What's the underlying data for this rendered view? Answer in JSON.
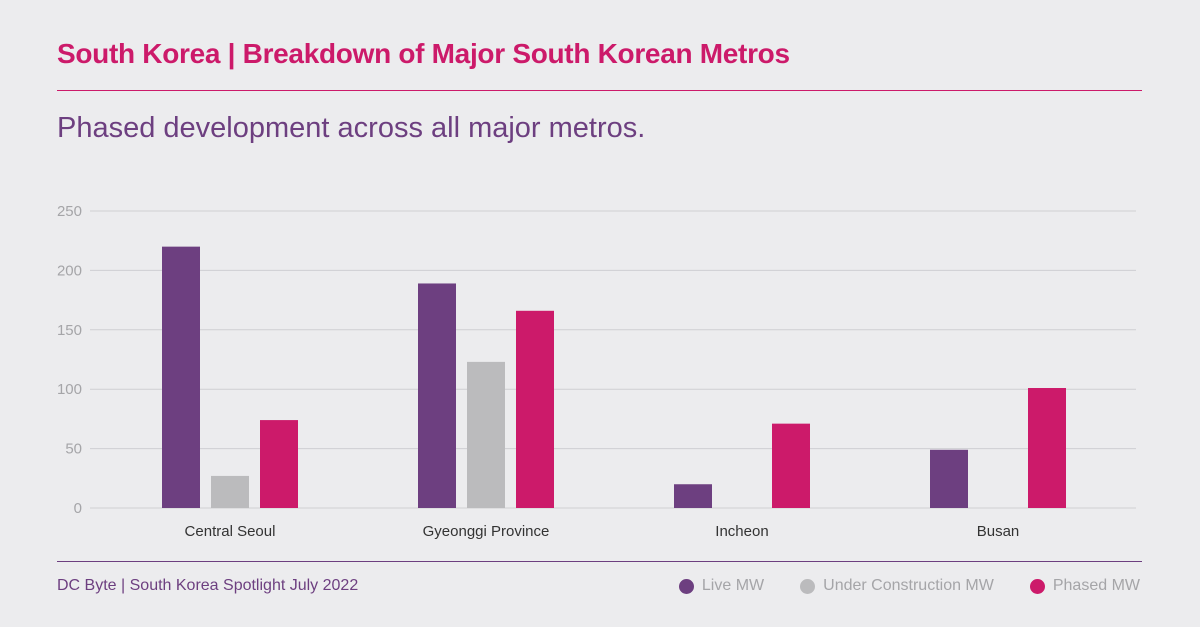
{
  "header": {
    "title": "South Korea | Breakdown of Major South Korean Metros",
    "subtitle": "Phased development across all major metros."
  },
  "footer": {
    "source": "DC Byte | South Korea Spotlight July 2022"
  },
  "colors": {
    "accent": "#cc1a6a",
    "purple": "#6d3f80",
    "grid": "#cfcfd2"
  },
  "chart_data": {
    "type": "bar",
    "categories": [
      "Central Seoul",
      "Gyeonggi Province",
      "Incheon",
      "Busan"
    ],
    "series": [
      {
        "name": "Live MW",
        "color": "#6d3f80",
        "values": [
          220,
          189,
          20,
          49
        ]
      },
      {
        "name": "Under Construction MW",
        "color": "#bbbbbd",
        "values": [
          27,
          123,
          0,
          0
        ]
      },
      {
        "name": "Phased MW",
        "color": "#cc1a6a",
        "values": [
          74,
          166,
          71,
          101
        ]
      }
    ],
    "ylim": [
      0,
      250
    ],
    "yticks": [
      0,
      50,
      100,
      150,
      200,
      250
    ],
    "grid": true,
    "legend": "bottom-right"
  }
}
